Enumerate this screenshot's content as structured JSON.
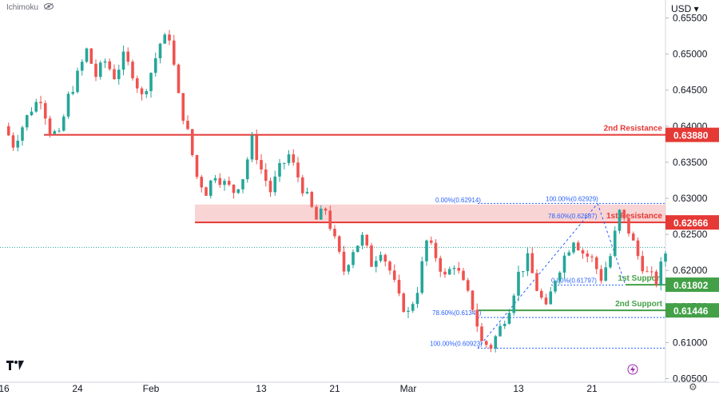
{
  "header": {
    "indicator": "Ichimoku",
    "currency": "USD"
  },
  "colors": {
    "up": "#26a69a",
    "down": "#ef5350",
    "resistance": "#e53935",
    "support": "#43a047",
    "fib": "#2962ff",
    "zone": "#f8c9c9"
  },
  "icons": {
    "eye": "eye-icon",
    "logo": "tradingview-logo",
    "lightning": "lightning-icon",
    "settings": "gear-icon"
  },
  "chart_data": {
    "type": "candlestick",
    "ylim": [
      0.6045,
      0.6575
    ],
    "y_ticks": [
      "0.65500",
      "0.65000",
      "0.64500",
      "0.64000",
      "0.63500",
      "0.63000",
      "0.62500",
      "0.62000",
      "0.61500",
      "0.61000",
      "0.60500"
    ],
    "x_ticks": [
      {
        "label": "16",
        "day": 0
      },
      {
        "label": "24",
        "day": 8
      },
      {
        "label": "Feb",
        "day": 16
      },
      {
        "label": "13",
        "day": 28
      },
      {
        "label": "21",
        "day": 36
      },
      {
        "label": "Mar",
        "day": 44
      },
      {
        "label": "13",
        "day": 56
      },
      {
        "label": "21",
        "day": 64
      }
    ],
    "path_points": [
      [
        0,
        0.64
      ],
      [
        1,
        0.6375
      ],
      [
        2,
        0.64
      ],
      [
        3,
        0.6425
      ],
      [
        4,
        0.644
      ],
      [
        5,
        0.6395
      ],
      [
        6,
        0.6385
      ],
      [
        7,
        0.644
      ],
      [
        8,
        0.647
      ],
      [
        9,
        0.6505
      ],
      [
        10,
        0.647
      ],
      [
        11,
        0.649
      ],
      [
        12,
        0.647
      ],
      [
        13,
        0.6495
      ],
      [
        14,
        0.6475
      ],
      [
        15,
        0.644
      ],
      [
        16,
        0.6475
      ],
      [
        17,
        0.6515
      ],
      [
        18,
        0.6525
      ],
      [
        19,
        0.644
      ],
      [
        20,
        0.639
      ],
      [
        21,
        0.633
      ],
      [
        22,
        0.631
      ],
      [
        23,
        0.6335
      ],
      [
        24,
        0.632
      ],
      [
        25,
        0.631
      ],
      [
        26,
        0.633
      ],
      [
        27,
        0.638
      ],
      [
        28,
        0.634
      ],
      [
        29,
        0.631
      ],
      [
        30,
        0.634
      ],
      [
        31,
        0.636
      ],
      [
        32,
        0.633
      ],
      [
        33,
        0.63
      ],
      [
        34,
        0.627
      ],
      [
        35,
        0.6285
      ],
      [
        36,
        0.624
      ],
      [
        37,
        0.62
      ],
      [
        38,
        0.623
      ],
      [
        39,
        0.6245
      ],
      [
        40,
        0.621
      ],
      [
        41,
        0.623
      ],
      [
        42,
        0.62
      ],
      [
        43,
        0.616
      ],
      [
        44,
        0.614
      ],
      [
        45,
        0.6175
      ],
      [
        46,
        0.624
      ],
      [
        47,
        0.622
      ],
      [
        48,
        0.619
      ],
      [
        49,
        0.621
      ],
      [
        50,
        0.618
      ],
      [
        51,
        0.615
      ],
      [
        52,
        0.61
      ],
      [
        53,
        0.6095
      ],
      [
        54,
        0.612
      ],
      [
        55,
        0.615
      ],
      [
        56,
        0.6195
      ],
      [
        57,
        0.6215
      ],
      [
        58,
        0.6175
      ],
      [
        59,
        0.6145
      ],
      [
        60,
        0.619
      ],
      [
        61,
        0.622
      ],
      [
        62,
        0.6245
      ],
      [
        63,
        0.6225
      ],
      [
        64,
        0.6215
      ],
      [
        65,
        0.619
      ],
      [
        66,
        0.622
      ],
      [
        67,
        0.628
      ],
      [
        68,
        0.6255
      ],
      [
        69,
        0.622
      ],
      [
        70,
        0.6195
      ],
      [
        71,
        0.6185
      ],
      [
        72,
        0.6225
      ]
    ],
    "levels": [
      {
        "name": "2nd Resistance",
        "value": 0.6388,
        "price_label": "0.63880",
        "kind": "resistance"
      },
      {
        "name": "1st Resistance",
        "value": 0.62666,
        "price_label": "0.62666",
        "kind": "resistance"
      },
      {
        "name": "1st Support",
        "value": 0.61802,
        "price_label": "0.61802",
        "kind": "support"
      },
      {
        "name": "2nd Support",
        "value": 0.61446,
        "price_label": "0.61446",
        "kind": "support"
      }
    ],
    "resistance_zone": {
      "low": 0.62666,
      "high": 0.62914
    },
    "current_price": 0.6232,
    "fib_labels": [
      {
        "text": "0.00%(0.62914)",
        "value": 0.62914
      },
      {
        "text": "100.00%(0.62929)",
        "value": 0.62929
      },
      {
        "text": "78.60%(0.62687)",
        "value": 0.62687
      },
      {
        "text": "0.00%(0.61797)",
        "value": 0.61797
      },
      {
        "text": "78.60%(0.61348)",
        "value": 0.61348
      },
      {
        "text": "100.00%(0.60923)",
        "value": 0.60923
      }
    ]
  }
}
